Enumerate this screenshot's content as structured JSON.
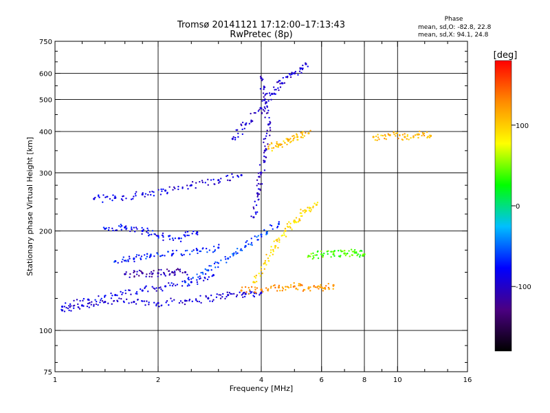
{
  "chart_data": {
    "type": "scatter",
    "title": "Tromsø 20141121 17:12:00–17:13:43",
    "subtitle": "RwPretec (8p)",
    "xlabel": "Frequency [MHz]",
    "ylabel": "Stationary phase Virtual Height [km]",
    "x_scale": "log",
    "y_scale": "log",
    "xlim": [
      1,
      16
    ],
    "ylim": [
      75,
      750
    ],
    "x_ticks": [
      1,
      2,
      4,
      6,
      8,
      10,
      16
    ],
    "y_ticks": [
      75,
      100,
      200,
      300,
      400,
      500,
      600,
      750
    ],
    "grid_x": [
      2,
      4,
      6,
      8,
      10
    ],
    "grid_y": [
      100,
      200,
      300,
      400,
      500,
      600
    ],
    "phase_stats": {
      "title": "Phase",
      "line_o": "mean, sd,O: -82.8, 22.8",
      "line_x": "mean, sd,X: 94.1, 24.8"
    },
    "colorbar": {
      "label": "[deg]",
      "range": [
        -180,
        180
      ],
      "ticks": [
        -100,
        0,
        100
      ],
      "colors": [
        "#000000",
        "#4b0082",
        "#0000ff",
        "#00bfff",
        "#00ff00",
        "#ffff00",
        "#ff8c00",
        "#ff0000"
      ]
    },
    "series": [
      {
        "name": "",
        "trace": "main-lower-branch",
        "phase": -95,
        "x": [
          1.05,
          1.2,
          1.4,
          1.7,
          2.0,
          2.4,
          2.8,
          3.2,
          3.6,
          4.0
        ],
        "y": [
          115,
          119,
          122,
          122,
          121,
          123,
          125,
          128,
          129,
          130
        ]
      },
      {
        "name": "",
        "trace": "oblique-trace-1",
        "phase": -85,
        "x": [
          1.05,
          1.25,
          1.5,
          1.8,
          2.1,
          2.5,
          2.9
        ],
        "y": [
          118,
          124,
          128,
          132,
          136,
          140,
          147
        ]
      },
      {
        "name": "",
        "trace": "upper-trace-250",
        "phase": -90,
        "x": [
          1.3,
          1.5,
          1.8,
          2.1,
          2.5,
          3.0,
          3.5
        ],
        "y": [
          250,
          252,
          258,
          265,
          275,
          285,
          295
        ]
      },
      {
        "name": "",
        "trace": "trace-200",
        "phase": -80,
        "x": [
          1.4,
          1.6,
          1.8,
          2.0,
          2.3,
          2.6
        ],
        "y": [
          203,
          205,
          200,
          193,
          190,
          198
        ]
      },
      {
        "name": "",
        "trace": "trace-160",
        "phase": -70,
        "x": [
          1.5,
          1.7,
          1.9,
          2.2,
          2.6,
          3.0
        ],
        "y": [
          162,
          165,
          168,
          170,
          175,
          178
        ]
      },
      {
        "name": "",
        "trace": "trace-150",
        "phase": -110,
        "x": [
          1.6,
          1.8,
          2.0,
          2.2,
          2.4
        ],
        "y": [
          148,
          149,
          149,
          150,
          150
        ]
      },
      {
        "name": "",
        "trace": "rising-f-trace",
        "phase": -60,
        "x": [
          2.4,
          2.8,
          3.2,
          3.6,
          4.0,
          4.5
        ],
        "y": [
          140,
          152,
          165,
          180,
          195,
          210
        ]
      },
      {
        "name": "",
        "trace": "x-mode-yellow",
        "phase": 95,
        "x": [
          3.8,
          4.1,
          4.4,
          4.7,
          5.0,
          5.4,
          5.8
        ],
        "y": [
          140,
          160,
          180,
          200,
          215,
          230,
          240
        ]
      },
      {
        "name": "",
        "trace": "x-mode-orange-low",
        "phase": 125,
        "x": [
          3.5,
          4.0,
          4.5,
          5.0,
          5.5,
          6.0,
          6.5
        ],
        "y": [
          132,
          133,
          135,
          136,
          134,
          135,
          137
        ]
      },
      {
        "name": "",
        "trace": "x-mode-high-380",
        "phase": 105,
        "x": [
          4.2,
          4.5,
          4.8,
          5.1,
          5.5
        ],
        "y": [
          355,
          365,
          375,
          385,
          395
        ]
      },
      {
        "name": "",
        "trace": "high-range-scatter",
        "phase": -95,
        "x": [
          3.3,
          3.6,
          4.0,
          4.3,
          4.6,
          5.0,
          5.4
        ],
        "y": [
          380,
          420,
          470,
          520,
          560,
          600,
          640
        ]
      },
      {
        "name": "",
        "trace": "dense-column-4MHz",
        "phase": -100,
        "x": [
          3.8,
          3.9,
          4.0,
          4.1,
          4.2,
          4.1,
          4.0
        ],
        "y": [
          220,
          260,
          300,
          350,
          420,
          500,
          580
        ]
      },
      {
        "name": "",
        "trace": "green-trace-170",
        "phase": 40,
        "x": [
          5.5,
          6.0,
          6.5,
          7.0,
          7.5,
          8.0
        ],
        "y": [
          168,
          170,
          170,
          171,
          172,
          170
        ]
      },
      {
        "name": "",
        "trace": "high-freq-sparse",
        "phase": 110,
        "x": [
          8.5,
          9.5,
          10.5,
          11.5,
          12.5
        ],
        "y": [
          385,
          390,
          385,
          392,
          388
        ]
      }
    ]
  }
}
